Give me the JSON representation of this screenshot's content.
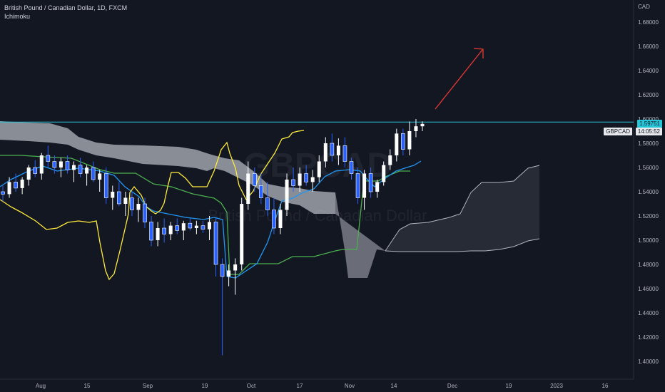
{
  "header": {
    "title": "British Pound / Canadian Dollar, 1D, FXCM",
    "indicator": "Ichimoku"
  },
  "watermark": {
    "symbol": "GBPCAD",
    "name": "British Pound / Canadian Dollar"
  },
  "price_axis": {
    "currency": "CAD",
    "labels": [
      "1.68000",
      "1.66000",
      "1.64000",
      "1.62000",
      "1.60000",
      "1.58000",
      "1.56000",
      "1.54000",
      "1.52000",
      "1.50000",
      "1.48000",
      "1.46000",
      "1.44000",
      "1.42000",
      "1.40000"
    ],
    "last_price": "1.59751",
    "symbol_tag": "GBPCAD",
    "countdown": "14:05:52"
  },
  "time_axis": {
    "labels": [
      "Aug",
      "15",
      "Sep",
      "19",
      "Oct",
      "17",
      "Nov",
      "14",
      "Dec",
      "19",
      "2023",
      "16"
    ]
  },
  "colors": {
    "background": "#131722",
    "up_candle": "#ffffff",
    "down_candle": "#2962ff",
    "tenkan": "#2196f3",
    "kijun": "#4caf50",
    "chikou": "#ffeb3b",
    "cloud": "#b2b5be",
    "horizontal_line": "#26c6da",
    "arrow": "#e53935"
  },
  "chart_data": {
    "type": "candlestick",
    "ylim": [
      1.39,
      1.7
    ],
    "horizontal_line": 1.5975,
    "candles": [
      [
        1.54,
        1.545,
        1.532,
        1.538
      ],
      [
        1.538,
        1.552,
        1.535,
        1.548
      ],
      [
        1.548,
        1.555,
        1.54,
        1.543
      ],
      [
        1.543,
        1.552,
        1.538,
        1.55
      ],
      [
        1.55,
        1.562,
        1.545,
        1.56
      ],
      [
        1.56,
        1.566,
        1.552,
        1.555
      ],
      [
        1.555,
        1.572,
        1.55,
        1.57
      ],
      [
        1.57,
        1.578,
        1.56,
        1.565
      ],
      [
        1.565,
        1.57,
        1.555,
        1.56
      ],
      [
        1.56,
        1.568,
        1.552,
        1.565
      ],
      [
        1.565,
        1.57,
        1.555,
        1.558
      ],
      [
        1.558,
        1.565,
        1.548,
        1.562
      ],
      [
        1.562,
        1.568,
        1.552,
        1.555
      ],
      [
        1.555,
        1.562,
        1.545,
        1.56
      ],
      [
        1.56,
        1.565,
        1.548,
        1.55
      ],
      [
        1.55,
        1.558,
        1.54,
        1.555
      ],
      [
        1.555,
        1.56,
        1.53,
        1.535
      ],
      [
        1.535,
        1.545,
        1.525,
        1.54
      ],
      [
        1.54,
        1.548,
        1.528,
        1.53
      ],
      [
        1.53,
        1.54,
        1.52,
        1.535
      ],
      [
        1.535,
        1.54,
        1.52,
        1.525
      ],
      [
        1.525,
        1.535,
        1.515,
        1.53
      ],
      [
        1.53,
        1.535,
        1.51,
        1.515
      ],
      [
        1.515,
        1.52,
        1.495,
        1.5
      ],
      [
        1.5,
        1.515,
        1.495,
        1.51
      ],
      [
        1.51,
        1.518,
        1.498,
        1.505
      ],
      [
        1.505,
        1.515,
        1.5,
        1.512
      ],
      [
        1.512,
        1.518,
        1.505,
        1.508
      ],
      [
        1.508,
        1.516,
        1.5,
        1.514
      ],
      [
        1.514,
        1.518,
        1.508,
        1.51
      ],
      [
        1.51,
        1.516,
        1.505,
        1.512
      ],
      [
        1.512,
        1.516,
        1.506,
        1.509
      ],
      [
        1.509,
        1.52,
        1.5,
        1.515
      ],
      [
        1.515,
        1.518,
        1.47,
        1.48
      ],
      [
        1.48,
        1.485,
        1.405,
        1.47
      ],
      [
        1.47,
        1.48,
        1.462,
        1.475
      ],
      [
        1.475,
        1.485,
        1.455,
        1.48
      ],
      [
        1.48,
        1.535,
        1.475,
        1.53
      ],
      [
        1.53,
        1.565,
        1.525,
        1.555
      ],
      [
        1.555,
        1.56,
        1.54,
        1.545
      ],
      [
        1.545,
        1.555,
        1.53,
        1.535
      ],
      [
        1.535,
        1.548,
        1.52,
        1.525
      ],
      [
        1.525,
        1.535,
        1.505,
        1.51
      ],
      [
        1.51,
        1.53,
        1.505,
        1.525
      ],
      [
        1.525,
        1.555,
        1.52,
        1.55
      ],
      [
        1.55,
        1.56,
        1.54,
        1.545
      ],
      [
        1.545,
        1.56,
        1.54,
        1.555
      ],
      [
        1.555,
        1.562,
        1.545,
        1.548
      ],
      [
        1.548,
        1.558,
        1.54,
        1.552
      ],
      [
        1.552,
        1.57,
        1.548,
        1.565
      ],
      [
        1.565,
        1.585,
        1.56,
        1.58
      ],
      [
        1.58,
        1.588,
        1.565,
        1.57
      ],
      [
        1.57,
        1.584,
        1.562,
        1.578
      ],
      [
        1.578,
        1.585,
        1.56,
        1.565
      ],
      [
        1.565,
        1.568,
        1.55,
        1.555
      ],
      [
        1.555,
        1.56,
        1.53,
        1.535
      ],
      [
        1.535,
        1.558,
        1.525,
        1.555
      ],
      [
        1.555,
        1.56,
        1.535,
        1.54
      ],
      [
        1.54,
        1.55,
        1.535,
        1.548
      ],
      [
        1.548,
        1.565,
        1.545,
        1.562
      ],
      [
        1.562,
        1.575,
        1.558,
        1.57
      ],
      [
        1.57,
        1.592,
        1.565,
        1.588
      ],
      [
        1.588,
        1.592,
        1.57,
        1.575
      ],
      [
        1.575,
        1.598,
        1.57,
        1.59
      ],
      [
        1.59,
        1.6,
        1.585,
        1.594
      ],
      [
        1.594,
        1.598,
        1.59,
        1.596
      ]
    ]
  }
}
